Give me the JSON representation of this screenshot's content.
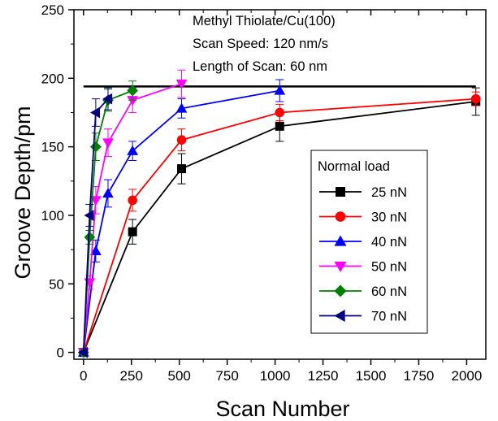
{
  "chart_data": {
    "type": "line",
    "xlabel": "Scan Number",
    "ylabel": "Groove Depth/pm",
    "xlim": [
      -50,
      2100
    ],
    "ylim": [
      -5,
      250
    ],
    "xticks": [
      0,
      250,
      500,
      750,
      1000,
      1250,
      1500,
      1750,
      2000
    ],
    "yticks": [
      0,
      50,
      100,
      150,
      200,
      250
    ],
    "annotations": [
      "Methyl Thiolate/Cu(100)",
      "Scan Speed: 120 nm/s",
      "Length of Scan: 60 nm"
    ],
    "reference_line": {
      "y": 194,
      "x_range": [
        0,
        2048
      ],
      "color": "#000000"
    },
    "legend": {
      "title": "Normal load",
      "placement": "right"
    },
    "grid": false,
    "series": [
      {
        "name": "25 nN",
        "color": "#000000",
        "marker": "square",
        "x": [
          0,
          256,
          512,
          1024,
          2048
        ],
        "y": [
          0,
          88,
          134,
          165,
          183
        ],
        "err": [
          0,
          9,
          11,
          11,
          10
        ]
      },
      {
        "name": "30 nN",
        "color": "#ff0000",
        "marker": "circle",
        "x": [
          0,
          256,
          512,
          1024,
          2048
        ],
        "y": [
          0,
          111,
          155,
          175,
          185
        ],
        "err": [
          0,
          8,
          8,
          6,
          5
        ]
      },
      {
        "name": "40 nN",
        "color": "#0000ff",
        "marker": "triangle-up",
        "x": [
          0,
          64,
          128,
          256,
          512,
          1024
        ],
        "y": [
          0,
          74,
          116,
          147,
          178,
          191
        ],
        "err": [
          0,
          8,
          10,
          7,
          7,
          8
        ]
      },
      {
        "name": "50 nN",
        "color": "#ff00ff",
        "marker": "triangle-down",
        "x": [
          0,
          32,
          64,
          128,
          256,
          512
        ],
        "y": [
          0,
          51,
          111,
          153,
          184,
          196
        ],
        "err": [
          0,
          5,
          10,
          10,
          9,
          10
        ]
      },
      {
        "name": "60 nN",
        "color": "#008000",
        "marker": "diamond",
        "x": [
          0,
          32,
          64,
          128,
          256
        ],
        "y": [
          0,
          84,
          150,
          184,
          191
        ],
        "err": [
          0,
          5,
          10,
          8,
          7
        ]
      },
      {
        "name": "70 nN",
        "color": "#000080",
        "marker": "triangle-left",
        "x": [
          0,
          32,
          64,
          128
        ],
        "y": [
          0,
          100,
          175,
          185
        ],
        "err": [
          0,
          8,
          10,
          8
        ]
      }
    ]
  }
}
